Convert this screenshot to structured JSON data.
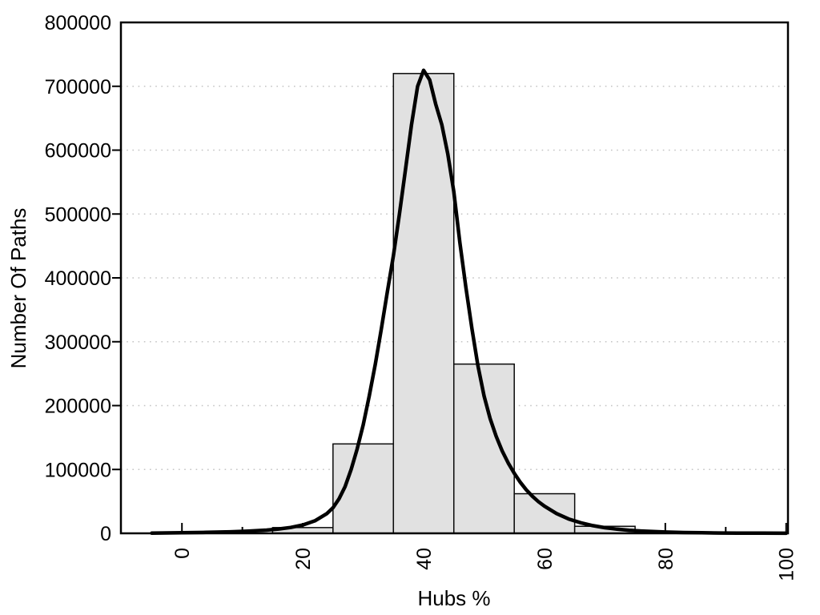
{
  "figure": {
    "background": "#ffffff"
  },
  "chart_data": {
    "type": "bar",
    "subtype": "histogram-with-density-curve",
    "title": "",
    "xlabel": "Hubs %",
    "ylabel": "Number Of Paths",
    "xlim": [
      -10.1,
      100.3
    ],
    "ylim": [
      0,
      800000
    ],
    "x_major_ticks": [
      0,
      20,
      40,
      60,
      80,
      100
    ],
    "x_minor_ticks": [
      10,
      30,
      50,
      70,
      90
    ],
    "y_ticks": [
      0,
      100000,
      200000,
      300000,
      400000,
      500000,
      600000,
      700000,
      800000
    ],
    "grid": "horizontal-dotted",
    "legend": "none",
    "histogram": {
      "bin_edges": [
        15,
        25,
        35,
        45,
        55,
        65,
        75
      ],
      "counts": [
        9000,
        140000,
        720000,
        265000,
        62000,
        11000
      ]
    },
    "density_curve": {
      "points": [
        [
          -5,
          300
        ],
        [
          0,
          900
        ],
        [
          4,
          1500
        ],
        [
          8,
          2400
        ],
        [
          11,
          3400
        ],
        [
          14,
          5000
        ],
        [
          16,
          6800
        ],
        [
          18,
          9200
        ],
        [
          20,
          13000
        ],
        [
          22,
          19500
        ],
        [
          24,
          31000
        ],
        [
          25,
          40000
        ],
        [
          26,
          54000
        ],
        [
          27,
          73000
        ],
        [
          28,
          100000
        ],
        [
          29,
          132000
        ],
        [
          30,
          170000
        ],
        [
          31,
          215000
        ],
        [
          32,
          265000
        ],
        [
          33,
          320000
        ],
        [
          34,
          378000
        ],
        [
          35,
          435000
        ],
        [
          36,
          500000
        ],
        [
          37,
          570000
        ],
        [
          38,
          640000
        ],
        [
          39,
          700000
        ],
        [
          40,
          725000
        ],
        [
          41,
          710000
        ],
        [
          42,
          672000
        ],
        [
          43,
          640000
        ],
        [
          44,
          594000
        ],
        [
          45,
          535000
        ],
        [
          46,
          455000
        ],
        [
          47,
          385000
        ],
        [
          48,
          320000
        ],
        [
          49,
          262000
        ],
        [
          50,
          215000
        ],
        [
          51,
          180000
        ],
        [
          52,
          152000
        ],
        [
          53,
          129000
        ],
        [
          54,
          110000
        ],
        [
          55,
          94000
        ],
        [
          56,
          80000
        ],
        [
          57,
          68000
        ],
        [
          58,
          58000
        ],
        [
          59,
          49500
        ],
        [
          60,
          42500
        ],
        [
          62,
          31000
        ],
        [
          64,
          22500
        ],
        [
          66,
          16500
        ],
        [
          68,
          12000
        ],
        [
          70,
          8800
        ],
        [
          72,
          6500
        ],
        [
          74,
          4800
        ],
        [
          76,
          3600
        ],
        [
          78,
          2700
        ],
        [
          80,
          2000
        ],
        [
          83,
          1300
        ],
        [
          86,
          850
        ],
        [
          89,
          550
        ],
        [
          92,
          380
        ],
        [
          96,
          230
        ],
        [
          100,
          130
        ]
      ]
    },
    "colors": {
      "bar_fill": "#e1e1e1",
      "bar_stroke": "#0a0a0a",
      "curve": "#000000",
      "grid": "#c4c4c4",
      "axis": "#000000",
      "text": "#000000"
    }
  }
}
